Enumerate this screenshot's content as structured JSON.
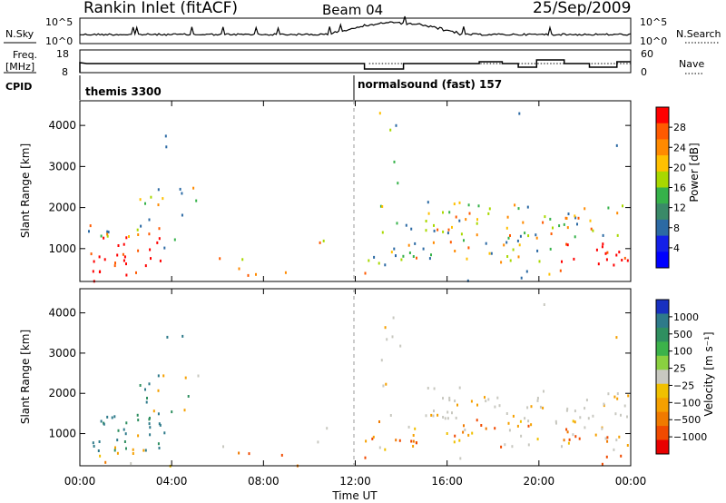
{
  "header": {
    "title": "Rankin Inlet (fitACF)",
    "beam": "Beam 04",
    "date": "25/Sep/2009"
  },
  "top_panels": {
    "nsky_label": "N.Sky",
    "nsky_ticks": [
      "10^5",
      "10^0"
    ],
    "nsearch_label": "N.Search",
    "freq_label_1": "Freq.",
    "freq_label_2": "[MHz]",
    "freq_ticks": [
      "18",
      "8"
    ],
    "nave_label": "Nave",
    "nave_ticks": [
      "60",
      "0"
    ],
    "cpid_label": "CPID",
    "cpid_1": "themis 3300",
    "cpid_2": "normalsound (fast) 157"
  },
  "chart_data": [
    {
      "type": "heatmap",
      "quantity": "Power",
      "ylabel": "Slant Range [km]",
      "yticks": [
        1000,
        2000,
        3000,
        4000
      ],
      "ylim": [
        200,
        4600
      ],
      "colorbar_label": "Power [dB]",
      "colorbar_ticks": [
        "28",
        "24",
        "20",
        "16",
        "12",
        "8",
        "4"
      ],
      "colorbar_colors": [
        "#ff0000",
        "#ff5a00",
        "#ff8a00",
        "#ffc000",
        "#a8d800",
        "#36b24a",
        "#3a8a68",
        "#2c6aa4",
        "#1420e8",
        "#0000ff"
      ]
    },
    {
      "type": "heatmap",
      "quantity": "Velocity",
      "ylabel": "Slant Range [km]",
      "yticks": [
        1000,
        2000,
        3000,
        4000
      ],
      "ylim": [
        200,
        4600
      ],
      "colorbar_label": "Velocity [m s⁻¹]",
      "colorbar_ticks": [
        "1000",
        "500",
        "100",
        "25",
        "−25",
        "−100",
        "−500",
        "−1000"
      ],
      "colorbar_colors": [
        "#1830c0",
        "#2e7a8a",
        "#2f8f60",
        "#3cb24a",
        "#8ad040",
        "#c8c8c0",
        "#f0c000",
        "#f5a000",
        "#f07a00",
        "#f04a00",
        "#e80000"
      ]
    }
  ],
  "xaxis": {
    "label": "Time UT",
    "ticks": [
      "00:00",
      "04:00",
      "08:00",
      "12:00",
      "16:00",
      "20:00",
      "00:00"
    ]
  },
  "colors": {
    "grey_scatter": "#c8c8c0",
    "dashed_line": "#999999"
  }
}
